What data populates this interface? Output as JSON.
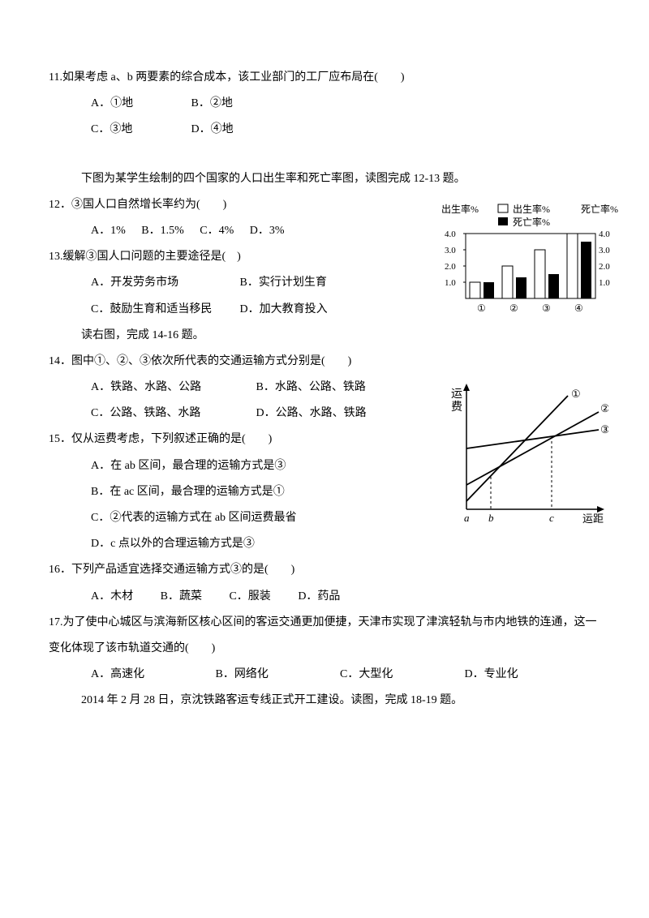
{
  "q11": {
    "text": "11.如果考虑 a、b 两要素的综合成本，该工业部门的工厂应布局在(　　)",
    "a": "A．①地",
    "b": "B．②地",
    "c": "C．③地",
    "d": "D．④地"
  },
  "intro12": "下图为某学生绘制的四个国家的人口出生率和死亡率图，读图完成 12-13 题。",
  "q12": {
    "text": "12．③国人口自然增长率约为(　　)",
    "a": "A．1%",
    "b": "B．1.5%",
    "c": "C．4%",
    "d": "D．3%"
  },
  "q13": {
    "text": "13.缓解③国人口问题的主要途径是(　)",
    "a": "A．开发劳务市场",
    "b": "B．实行计划生育",
    "c": "C．鼓励生育和适当移民",
    "d": "D．加大教育投入"
  },
  "intro14": "读右图，完成 14-16 题。",
  "q14": {
    "text": "14．图中①、②、③依次所代表的交通运输方式分别是(　　)",
    "a": "A．铁路、水路、公路",
    "b": "B．水路、公路、铁路",
    "c": "C．公路、铁路、水路",
    "d": "D．公路、水路、铁路"
  },
  "q15": {
    "text": "15．仅从运费考虑，下列叙述正确的是(　　)",
    "a": "A．在 ab 区间，最合理的运输方式是③",
    "b": "B．在 ac 区间，最合理的运输方式是①",
    "c": "C．②代表的运输方式在 ab 区间运费最省",
    "d": "D．c 点以外的合理运输方式是③"
  },
  "q16": {
    "text": "16．下列产品适宜选择交通运输方式③的是(　　)",
    "a": "A．木材",
    "b": "B．蔬菜",
    "c": "C．服装",
    "d": "D．药品"
  },
  "q17": {
    "text": "17.为了使中心城区与滨海新区核心区间的客运交通更加便捷，天津市实现了津滨轻轨与市内地铁的连通，这一变化体现了该市轨道交通的(　　)",
    "a": "A．高速化",
    "b": "B．网络化",
    "c": "C．大型化",
    "d": "D．专业化"
  },
  "intro18": "2014 年 2 月 28 日，京沈铁路客运专线正式开工建设。读图，完成 18-19 题。",
  "birth_chart": {
    "legend_birth": "出生率%",
    "legend_death": "死亡率%",
    "y_left_label": "出生率%",
    "y_right_label": "死亡率%",
    "ticks": [
      "1.0",
      "2.0",
      "3.0",
      "4.0"
    ],
    "cats": [
      "①",
      "②",
      "③",
      "④"
    ],
    "birth": [
      1.0,
      2.0,
      3.0,
      4.0
    ],
    "death": [
      1.0,
      1.3,
      1.5,
      3.5
    ],
    "bar_birth_color": "#ffffff",
    "bar_death_color": "#000000",
    "axis_color": "#000000"
  },
  "trans_chart": {
    "y_label": "运费",
    "x_label": "运距",
    "x_ticks": [
      "a",
      "b",
      "c"
    ],
    "lines": [
      "①",
      "②",
      "③"
    ],
    "axis_color": "#000000"
  }
}
